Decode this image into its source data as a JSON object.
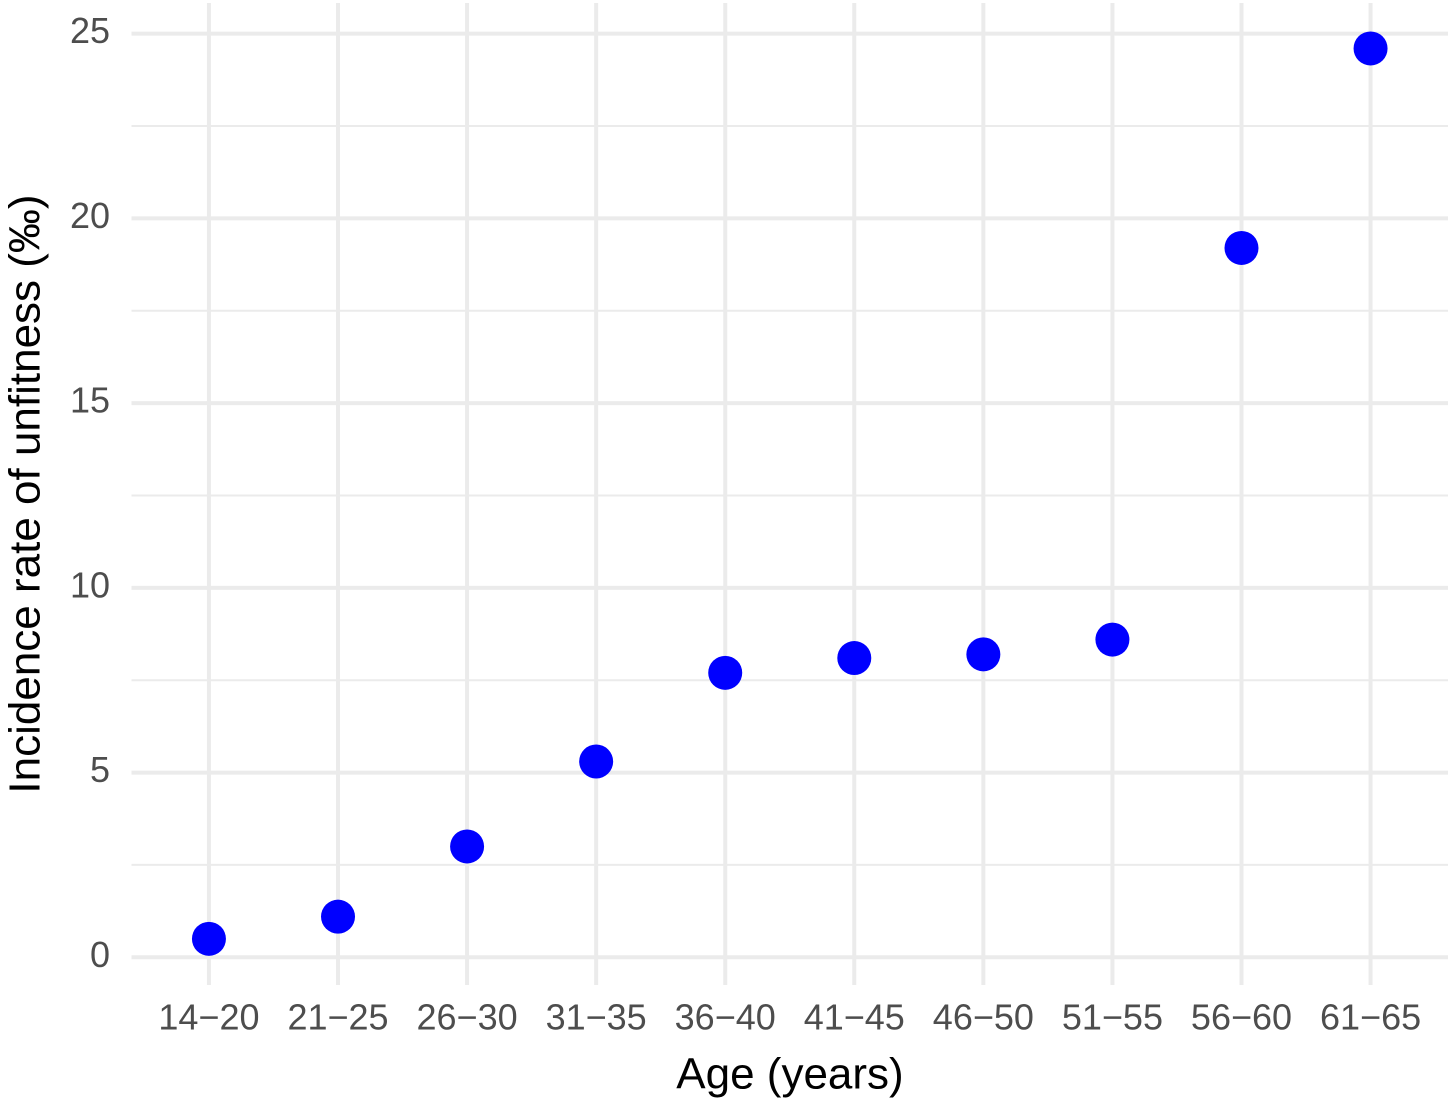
{
  "chart_data": {
    "type": "scatter",
    "x_label": "Age (years)",
    "y_label": "Incidence rate of unfitness (‰)",
    "categories": [
      "14−20",
      "21−25",
      "26−30",
      "31−35",
      "36−40",
      "41−45",
      "46−50",
      "51−55",
      "56−60",
      "61−65"
    ],
    "values": [
      0.5,
      1.1,
      3.0,
      5.3,
      7.7,
      8.1,
      8.2,
      8.6,
      19.2,
      24.6
    ],
    "color": "#0000ff",
    "ylim": [
      -0.75,
      25.83
    ],
    "yticks": [
      0,
      5,
      10,
      15,
      20,
      25
    ],
    "yminor": [
      2.5,
      7.5,
      12.5,
      17.5,
      22.5
    ],
    "grid": true
  }
}
